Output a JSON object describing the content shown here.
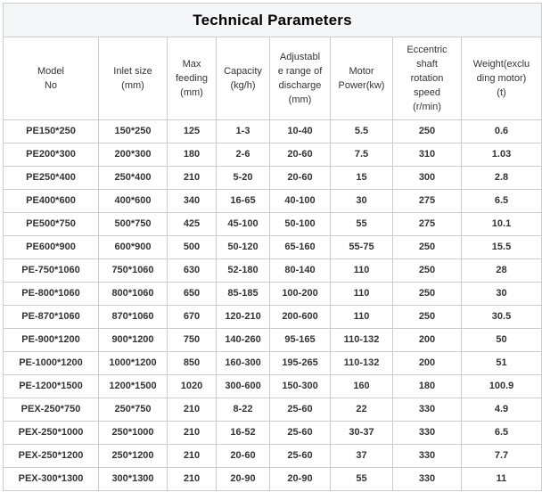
{
  "title": "Technical Parameters",
  "colors": {
    "border": "#cccccc",
    "title_background": "#f5f6f7",
    "header_text": "#333333",
    "cell_text": "#333333",
    "title_text": "#000000"
  },
  "chart_data": {
    "type": "table",
    "title": "Technical Parameters",
    "columns": [
      "Model\nNo",
      "Inlet size\n(mm)",
      "Max\nfeeding\n(mm)",
      "Capacity\n(kg/h)",
      "Adjustabl\ne range of\ndischarge\n(mm)",
      "Motor\nPower(kw)",
      "Eccentric\nshaft\nrotation\nspeed\n(r/min)",
      "Weight(exclu\nding motor)\n(t)"
    ],
    "rows": [
      [
        "PE150*250",
        "150*250",
        "125",
        "1-3",
        "10-40",
        "5.5",
        "250",
        "0.6"
      ],
      [
        "PE200*300",
        "200*300",
        "180",
        "2-6",
        "20-60",
        "7.5",
        "310",
        "1.03"
      ],
      [
        "PE250*400",
        "250*400",
        "210",
        "5-20",
        "20-60",
        "15",
        "300",
        "2.8"
      ],
      [
        "PE400*600",
        "400*600",
        "340",
        "16-65",
        "40-100",
        "30",
        "275",
        "6.5"
      ],
      [
        "PE500*750",
        "500*750",
        "425",
        "45-100",
        "50-100",
        "55",
        "275",
        "10.1"
      ],
      [
        "PE600*900",
        "600*900",
        "500",
        "50-120",
        "65-160",
        "55-75",
        "250",
        "15.5"
      ],
      [
        "PE-750*1060",
        "750*1060",
        "630",
        "52-180",
        "80-140",
        "110",
        "250",
        "28"
      ],
      [
        "PE-800*1060",
        "800*1060",
        "650",
        "85-185",
        "100-200",
        "110",
        "250",
        "30"
      ],
      [
        "PE-870*1060",
        "870*1060",
        "670",
        "120-210",
        "200-600",
        "110",
        "250",
        "30.5"
      ],
      [
        "PE-900*1200",
        "900*1200",
        "750",
        "140-260",
        "95-165",
        "110-132",
        "200",
        "50"
      ],
      [
        "PE-1000*1200",
        "1000*1200",
        "850",
        "160-300",
        "195-265",
        "110-132",
        "200",
        "51"
      ],
      [
        "PE-1200*1500",
        "1200*1500",
        "1020",
        "300-600",
        "150-300",
        "160",
        "180",
        "100.9"
      ],
      [
        "PEX-250*750",
        "250*750",
        "210",
        "8-22",
        "25-60",
        "22",
        "330",
        "4.9"
      ],
      [
        "PEX-250*1000",
        "250*1000",
        "210",
        "16-52",
        "25-60",
        "30-37",
        "330",
        "6.5"
      ],
      [
        "PEX-250*1200",
        "250*1200",
        "210",
        "20-60",
        "25-60",
        "37",
        "330",
        "7.7"
      ],
      [
        "PEX-300*1300",
        "300*1300",
        "210",
        "20-90",
        "20-90",
        "55",
        "330",
        "11"
      ]
    ]
  }
}
